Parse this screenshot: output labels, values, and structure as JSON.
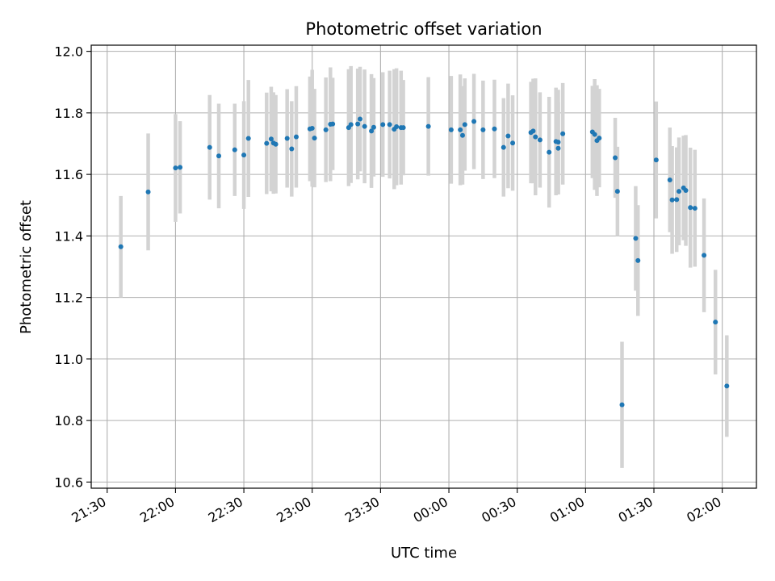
{
  "chart_data": {
    "type": "scatter",
    "title": "Photometric offset variation",
    "xlabel": "UTC time",
    "ylabel": "Photometric offset",
    "grid": true,
    "x_tick_labels": [
      "21:30",
      "22:00",
      "22:30",
      "23:00",
      "23:30",
      "00:00",
      "00:30",
      "01:00",
      "01:30",
      "02:00"
    ],
    "y_tick_labels": [
      "10.6",
      "10.8",
      "11.0",
      "11.2",
      "11.4",
      "11.6",
      "11.8",
      "12.0"
    ],
    "ylim": [
      10.58,
      12.02
    ],
    "xlim": [
      "2000-01-01T21:23",
      "2000-01-02T02:15"
    ],
    "colors": {
      "points": "#1f77b4",
      "error_bars": "#d3d3d3",
      "grid": "#b0b0b0"
    },
    "series": [
      {
        "x": [
          "21:36",
          "21:48",
          "22:00",
          "22:02",
          "22:15",
          "22:19",
          "22:26",
          "22:30",
          "22:32",
          "22:40",
          "22:42",
          "22:43",
          "22:44",
          "22:49",
          "22:51",
          "22:53",
          "22:59",
          "23:00",
          "23:01",
          "23:06",
          "23:08",
          "23:09",
          "23:16",
          "23:17",
          "23:20",
          "23:21",
          "23:23",
          "23:26",
          "23:27",
          "23:31",
          "23:34",
          "23:36",
          "23:37",
          "23:39",
          "23:40",
          "23:51",
          "24:01",
          "24:05",
          "24:06",
          "24:07",
          "24:11",
          "24:15",
          "24:20",
          "24:24",
          "24:26",
          "24:28",
          "24:36",
          "24:37",
          "24:38",
          "24:40",
          "24:44",
          "24:47",
          "24:48",
          "24:48",
          "24:50",
          "25:03",
          "25:04",
          "25:05",
          "25:06",
          "25:13",
          "25:14",
          "25:16",
          "25:22",
          "25:23",
          "25:31",
          "25:37",
          "25:38",
          "25:40",
          "25:41",
          "25:43",
          "25:44",
          "25:46",
          "25:48",
          "25:52",
          "25:57",
          "26:02"
        ],
        "y": [
          11.365,
          11.543,
          11.621,
          11.623,
          11.688,
          11.66,
          11.68,
          11.663,
          11.717,
          11.701,
          11.715,
          11.702,
          11.698,
          11.717,
          11.683,
          11.722,
          11.748,
          11.75,
          11.718,
          11.745,
          11.763,
          11.764,
          11.752,
          11.762,
          11.764,
          11.78,
          11.756,
          11.741,
          11.753,
          11.762,
          11.762,
          11.747,
          11.755,
          11.752,
          11.752,
          11.756,
          11.745,
          11.745,
          11.727,
          11.762,
          11.772,
          11.745,
          11.748,
          11.688,
          11.725,
          11.702,
          11.736,
          11.741,
          11.722,
          11.712,
          11.672,
          11.707,
          11.705,
          11.685,
          11.732,
          11.738,
          11.73,
          11.71,
          11.718,
          11.654,
          11.545,
          10.851,
          11.392,
          11.32,
          11.647,
          11.582,
          11.517,
          11.518,
          11.545,
          11.556,
          11.548,
          11.492,
          11.49,
          11.337,
          11.12,
          10.912
        ],
        "yerr": [
          0.165,
          0.19,
          0.175,
          0.15,
          0.17,
          0.17,
          0.15,
          0.175,
          0.19,
          0.165,
          0.17,
          0.165,
          0.16,
          0.16,
          0.155,
          0.165,
          0.17,
          0.19,
          0.16,
          0.17,
          0.185,
          0.15,
          0.19,
          0.19,
          0.18,
          0.17,
          0.185,
          0.185,
          0.16,
          0.17,
          0.175,
          0.195,
          0.19,
          0.185,
          0.155,
          0.16,
          0.175,
          0.18,
          0.16,
          0.15,
          0.155,
          0.16,
          0.16,
          0.16,
          0.17,
          0.155,
          0.165,
          0.17,
          0.19,
          0.155,
          0.18,
          0.175,
          0.17,
          0.15,
          0.165,
          0.15,
          0.18,
          0.18,
          0.16,
          0.13,
          0.145,
          0.205,
          0.17,
          0.18,
          0.19,
          0.17,
          0.175,
          0.17,
          0.175,
          0.17,
          0.18,
          0.195,
          0.19,
          0.185,
          0.17,
          0.165
        ]
      }
    ]
  }
}
